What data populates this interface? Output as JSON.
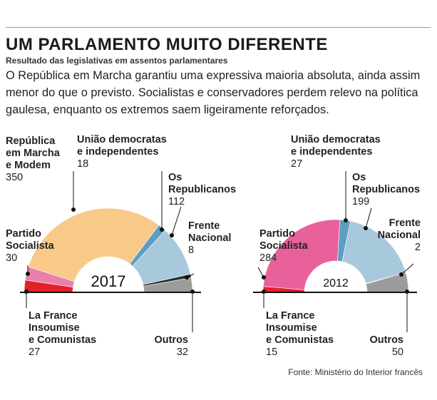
{
  "header": {
    "title": "UM PARLAMENTO MUITO DIFERENTE",
    "subtitle": "Resultado das legislativas em assentos parlamentares",
    "lead": "O República em Marcha garantiu uma expressiva maioria absoluta, ainda assim menor do que o previsto. Socialistas e conservadores perdem relevo na política gaulesa, enquanto os extremos saem ligeiramente reforçados."
  },
  "colors": {
    "lrem": "#f9c98a",
    "modem_udi": "#5d9ec2",
    "lr": "#a8c8dc",
    "fn": "#2a2a2a",
    "outros": "#9c9c9c",
    "ps": "#ea7fab",
    "lfi": "#e2202b",
    "ps2012": "#e8619b",
    "axis": "#111111"
  },
  "chart_data": [
    {
      "type": "pie",
      "variant": "semicircle",
      "center_label": "2017",
      "total": 577,
      "segments": [
        {
          "key": "lfi",
          "name": "La France Insoumise e Comunistas",
          "value": 27
        },
        {
          "key": "ps",
          "name": "Partido Socialista",
          "value": 30
        },
        {
          "key": "lrem",
          "name": "República em Marcha e Modem",
          "value": 350
        },
        {
          "key": "udi",
          "name": "União democratas e independentes",
          "value": 18
        },
        {
          "key": "lr",
          "name": "Os Republicanos",
          "value": 112
        },
        {
          "key": "fn",
          "name": "Frente Nacional",
          "value": 8
        },
        {
          "key": "outros",
          "name": "Outros",
          "value": 32
        }
      ],
      "labels": {
        "lrem": {
          "lines": [
            "República",
            "em Marcha",
            "e Modem"
          ],
          "value": "350"
        },
        "udi": {
          "lines": [
            "União democratas",
            "e independentes"
          ],
          "value": "18"
        },
        "lr": {
          "lines": [
            "Os",
            "Republicanos"
          ],
          "value": "112"
        },
        "fn": {
          "lines": [
            "Frente",
            "Nacional"
          ],
          "value": "8"
        },
        "ps": {
          "lines": [
            "Partido",
            "Socialista"
          ],
          "value": "30"
        },
        "lfi": {
          "lines": [
            "La France",
            "Insoumise",
            "e Comunistas"
          ],
          "value": "27"
        },
        "outros": {
          "lines": [
            "Outros"
          ],
          "value": "32"
        }
      }
    },
    {
      "type": "pie",
      "variant": "semicircle",
      "center_label": "2012",
      "total": 577,
      "segments": [
        {
          "key": "lfi",
          "name": "La France Insoumise e Comunistas",
          "value": 15
        },
        {
          "key": "ps",
          "name": "Partido Socialista",
          "value": 284
        },
        {
          "key": "udi",
          "name": "União democratas e independentes",
          "value": 27
        },
        {
          "key": "lr",
          "name": "Os Republicanos",
          "value": 199
        },
        {
          "key": "fn",
          "name": "Frente Nacional",
          "value": 2
        },
        {
          "key": "outros",
          "name": "Outros",
          "value": 50
        }
      ],
      "labels": {
        "udi": {
          "lines": [
            "União democratas",
            "e independentes"
          ],
          "value": "27"
        },
        "lr": {
          "lines": [
            "Os",
            "Republicanos"
          ],
          "value": "199"
        },
        "fn": {
          "lines": [
            "Frente",
            "Nacional"
          ],
          "value": "2"
        },
        "ps": {
          "lines": [
            "Partido",
            "Socialista"
          ],
          "value": "284"
        },
        "lfi": {
          "lines": [
            "La France",
            "Insoumise",
            "e Comunistas"
          ],
          "value": "15"
        },
        "outros": {
          "lines": [
            "Outros"
          ],
          "value": "50"
        }
      }
    }
  ],
  "footer": {
    "source": "Fonte: Ministério do Interior francês"
  }
}
